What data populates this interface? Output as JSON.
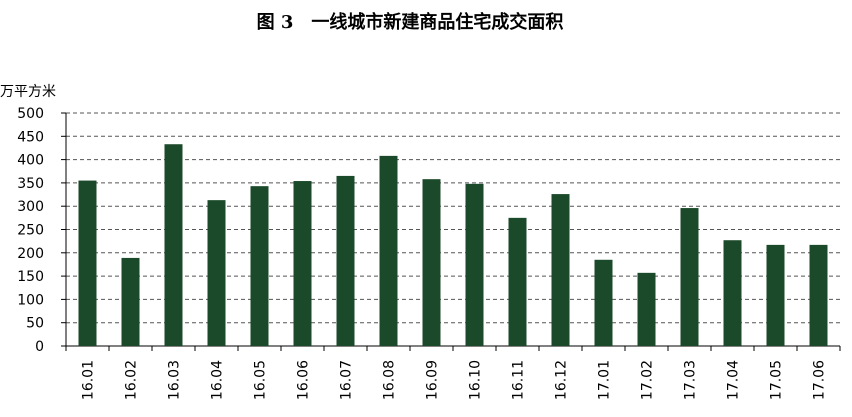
{
  "chart_data": {
    "type": "bar",
    "title": "图 3　一线城市新建商品住宅成交面积",
    "y_label": "万平方米",
    "categories": [
      "16.01",
      "16.02",
      "16.03",
      "16.04",
      "16.05",
      "16.06",
      "16.07",
      "16.08",
      "16.09",
      "16.10",
      "16.11",
      "16.12",
      "17.01",
      "17.02",
      "17.03",
      "17.04",
      "17.05",
      "17.06"
    ],
    "values": [
      355,
      189,
      433,
      313,
      343,
      354,
      365,
      408,
      358,
      348,
      275,
      326,
      185,
      157,
      296,
      227,
      217,
      217
    ],
    "color": "#1b4a2a",
    "ylim": [
      0,
      500
    ],
    "yticks": [
      0,
      50,
      100,
      150,
      200,
      250,
      300,
      350,
      400,
      450,
      500
    ],
    "grid": true
  }
}
